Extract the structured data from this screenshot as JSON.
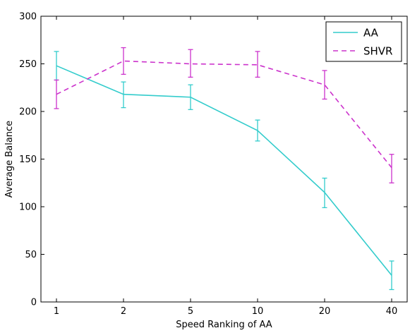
{
  "chart_data": {
    "type": "line",
    "categories": [
      "1",
      "2",
      "5",
      "10",
      "20",
      "40"
    ],
    "xlabel": "Speed Ranking of AA",
    "ylabel": "Average Balance",
    "ylim": [
      0,
      300
    ],
    "yticks": [
      "0",
      "50",
      "100",
      "150",
      "200",
      "250",
      "300"
    ],
    "grid": false,
    "legend": "top-right",
    "series": [
      {
        "name": "AA",
        "color": "#33cccc",
        "style": "solid",
        "values": [
          248,
          218,
          215,
          180,
          115,
          28
        ],
        "err_low": [
          233,
          204,
          202,
          169,
          99,
          13
        ],
        "err_high": [
          263,
          231,
          228,
          191,
          130,
          43
        ]
      },
      {
        "name": "SHVR",
        "color": "#cc33cc",
        "style": "dashed",
        "values": [
          218,
          253,
          250,
          249,
          228,
          141
        ],
        "err_low": [
          203,
          239,
          236,
          236,
          213,
          125
        ],
        "err_high": [
          233,
          267,
          265,
          263,
          243,
          155
        ]
      }
    ]
  }
}
